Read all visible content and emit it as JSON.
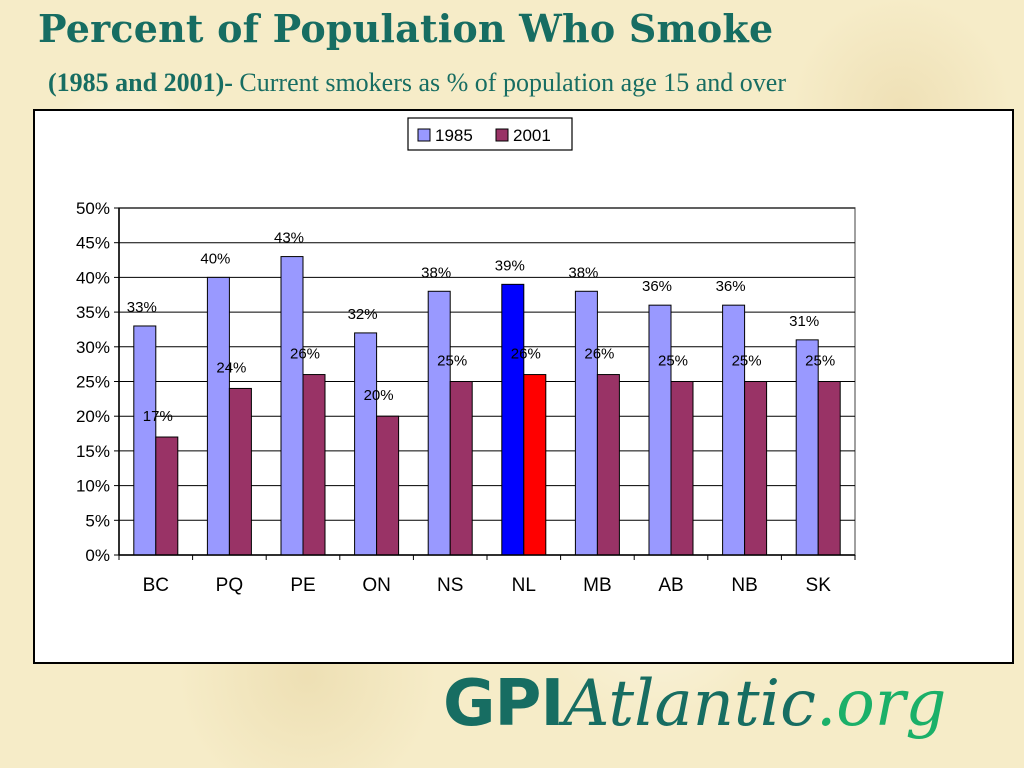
{
  "page": {
    "title": "Percent of Population Who Smoke",
    "subtitle_bold": "(1985 and 2001)-",
    "subtitle_rest": "Current smokers as % of population age 15 and over"
  },
  "logo": {
    "part1": "GPI",
    "part2": "Atlantic",
    "part3": ".org"
  },
  "colors": {
    "series_1985": "#9999ff",
    "series_2001": "#993366",
    "highlight_1985": "#0000ff",
    "highlight_2001": "#ff0000",
    "title": "#176d62",
    "logo_org": "#1bb069"
  },
  "chart_data": {
    "type": "bar",
    "categories": [
      "BC",
      "PQ",
      "PE",
      "ON",
      "NS",
      "NL",
      "MB",
      "AB",
      "NB",
      "SK"
    ],
    "series": [
      {
        "name": "1985",
        "values": [
          33,
          40,
          43,
          32,
          38,
          39,
          38,
          36,
          36,
          31
        ]
      },
      {
        "name": "2001",
        "values": [
          17,
          24,
          26,
          20,
          25,
          26,
          26,
          25,
          25,
          25
        ]
      }
    ],
    "data_labels_1985": [
      "33%",
      "40%",
      "43%",
      "32%",
      "38%",
      "39%",
      "38%",
      "36%",
      "36%",
      "31%"
    ],
    "data_labels_2001": [
      "17%",
      "24%",
      "26%",
      "20%",
      "25%",
      "26%",
      "26%",
      "25%",
      "25%",
      "25%"
    ],
    "highlight_category": "NL",
    "y_ticks": [
      "0%",
      "5%",
      "10%",
      "15%",
      "20%",
      "25%",
      "30%",
      "35%",
      "40%",
      "45%",
      "50%"
    ],
    "ylim": [
      0,
      50
    ],
    "y_unit": "%",
    "grid": "horizontal",
    "legend": "top-center"
  }
}
